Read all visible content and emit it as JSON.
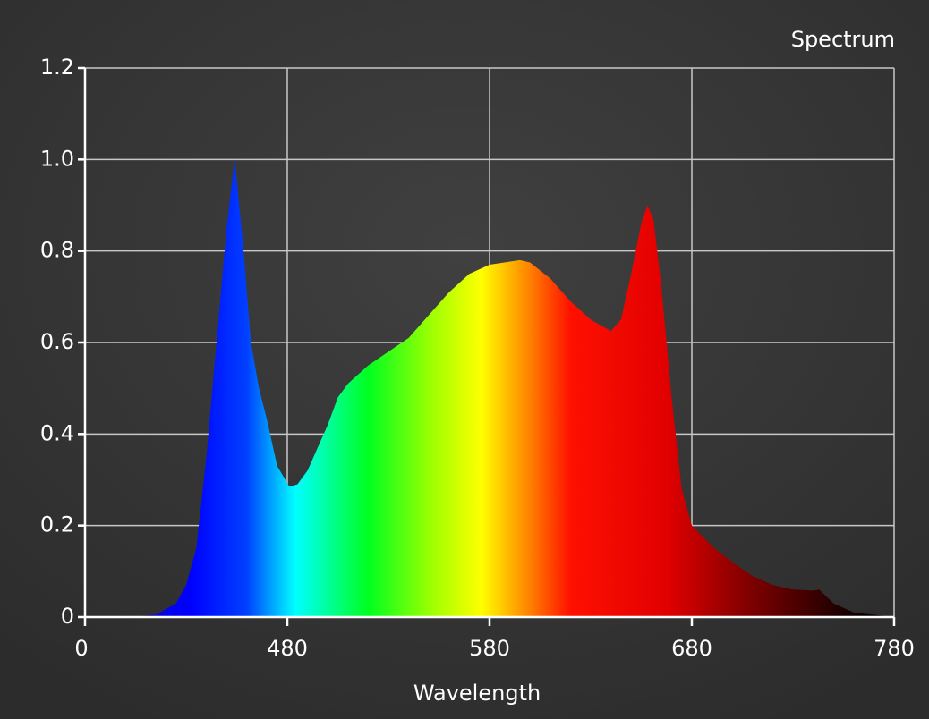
{
  "chart_data": {
    "type": "area",
    "title": "Spectrum",
    "xlabel": "Wavelength",
    "x": [
      380,
      400,
      415,
      425,
      430,
      435,
      440,
      445,
      450,
      454,
      458,
      462,
      466,
      470,
      475,
      481,
      485,
      490,
      495,
      500,
      505,
      510,
      520,
      530,
      540,
      550,
      560,
      570,
      580,
      595,
      600,
      610,
      620,
      630,
      640,
      645,
      650,
      655,
      658,
      661,
      665,
      670,
      675,
      680,
      690,
      700,
      710,
      720,
      730,
      740,
      743,
      750,
      760,
      780
    ],
    "values": [
      0,
      0,
      0.005,
      0.03,
      0.07,
      0.15,
      0.35,
      0.6,
      0.85,
      1.0,
      0.82,
      0.6,
      0.5,
      0.43,
      0.33,
      0.285,
      0.29,
      0.32,
      0.37,
      0.42,
      0.48,
      0.51,
      0.55,
      0.58,
      0.61,
      0.66,
      0.71,
      0.75,
      0.77,
      0.78,
      0.775,
      0.74,
      0.69,
      0.65,
      0.625,
      0.65,
      0.75,
      0.86,
      0.9,
      0.87,
      0.72,
      0.48,
      0.28,
      0.2,
      0.155,
      0.12,
      0.09,
      0.07,
      0.06,
      0.058,
      0.06,
      0.03,
      0.01,
      0
    ],
    "xlim": [
      380,
      780
    ],
    "ylim": [
      0,
      1.2
    ],
    "xticks": [
      {
        "value": 380,
        "label": "0"
      },
      480,
      580,
      680,
      780
    ],
    "yticks": [
      0,
      0.2,
      0.4,
      0.6,
      0.8,
      {
        "value": 1,
        "label": "1.0"
      },
      1.2
    ],
    "grid": true
  }
}
